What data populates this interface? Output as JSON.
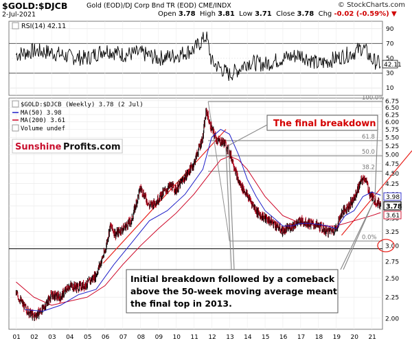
{
  "header": {
    "symbol": "$GOLD:$DJCB",
    "description": "Gold (EOD)/DJ Corp Bnd TR (EOD)  CME/INDX",
    "copyright": "© StockCharts.com",
    "date": "2-Jul-2021",
    "open_label": "Open",
    "open": "3.78",
    "high_label": "High",
    "high": "3.81",
    "low_label": "Low",
    "low": "3.71",
    "close_label": "Close",
    "close": "3.78",
    "chg_label": "Chg",
    "chg": "-0.02 (-0.59%)",
    "chg_arrow": "▼"
  },
  "rsi_panel": {
    "legend": "RSI(14) 42.11",
    "value_tag": "42.11",
    "levels": [
      90,
      70,
      50,
      30,
      10
    ],
    "overbought": 70,
    "oversold": 30
  },
  "price_panel": {
    "legend_title": "$GOLD:$DJCB (Weekly) 3.78 (2 Jul)",
    "legend_ma50": "MA(50) 3.98",
    "legend_ma200": "MA(200) 3.61",
    "legend_volume": "Volume undef",
    "tags": {
      "ma50": "3.98",
      "close": "3.78",
      "ma200": "3.61"
    },
    "colors": {
      "price": "#000000",
      "ma50": "#1f1fc8",
      "ma200": "#cc0022",
      "trendline": "#e8231d",
      "fib": "#8f8f8f",
      "annotation": "#d40000"
    }
  },
  "logo": {
    "part1": "Sunshine",
    "part2": "Profits.com"
  },
  "annotations": {
    "final_breakdown": "The final breakdown",
    "initial_breakdown": [
      "Initial breakdown followed by a comeback",
      "above the 50-week moving average meant",
      "the final top in 2013."
    ]
  },
  "chart_data": {
    "type": "line",
    "title": "$GOLD:$DJCB (Weekly)",
    "xlabel": "",
    "ylabel": "",
    "x_tick_labels": [
      "01",
      "02",
      "03",
      "04",
      "05",
      "06",
      "07",
      "08",
      "09",
      "10",
      "11",
      "12",
      "13",
      "14",
      "15",
      "16",
      "17",
      "18",
      "19",
      "20",
      "21"
    ],
    "y_tick_labels": [
      "6.75",
      "6.50",
      "6.25",
      "6.00",
      "5.75",
      "5.50",
      "5.25",
      "5.00",
      "4.75",
      "4.50",
      "4.25",
      "4.00",
      "3.75",
      "3.50",
      "3.25",
      "3.00",
      "2.75",
      "2.50",
      "2.25",
      "2.00"
    ],
    "ylim": [
      1.88,
      6.85
    ],
    "log_scale": true,
    "fibonacci_levels": [
      {
        "label": "100.0%",
        "value": 6.72
      },
      {
        "label": "61.8",
        "value": 5.4
      },
      {
        "label": "50.0",
        "value": 4.96
      },
      {
        "label": "38.2",
        "value": 4.55
      },
      {
        "label": "0.0%",
        "value": 3.08
      }
    ],
    "horizontal_reference": 2.95,
    "series": [
      {
        "name": "$GOLD:$DJCB",
        "x": [
          2001.0,
          2001.5,
          2002.0,
          2002.5,
          2003.0,
          2003.5,
          2004.0,
          2004.5,
          2005.0,
          2005.5,
          2006.0,
          2006.3,
          2006.6,
          2007.0,
          2007.5,
          2008.0,
          2008.5,
          2008.9,
          2009.3,
          2009.7,
          2010.0,
          2010.5,
          2011.0,
          2011.5,
          2011.7,
          2011.9,
          2012.3,
          2012.7,
          2013.0,
          2013.2,
          2013.5,
          2013.8,
          2014.2,
          2014.6,
          2015.0,
          2015.5,
          2016.0,
          2016.5,
          2017.0,
          2017.5,
          2018.0,
          2018.5,
          2019.0,
          2019.3,
          2019.7,
          2020.0,
          2020.4,
          2020.6,
          2020.9,
          2021.2,
          2021.5
        ],
        "values": [
          2.3,
          2.12,
          2.02,
          2.1,
          2.28,
          2.25,
          2.4,
          2.38,
          2.42,
          2.55,
          2.9,
          3.35,
          3.2,
          3.3,
          3.45,
          4.15,
          3.75,
          3.85,
          4.05,
          4.2,
          4.1,
          4.4,
          4.75,
          5.5,
          6.4,
          5.9,
          5.4,
          5.35,
          5.05,
          4.8,
          4.3,
          4.1,
          3.85,
          3.6,
          3.5,
          3.4,
          3.25,
          3.35,
          3.45,
          3.4,
          3.35,
          3.25,
          3.3,
          3.6,
          3.75,
          3.9,
          4.3,
          4.4,
          4.0,
          3.85,
          3.78
        ]
      },
      {
        "name": "MA(50)",
        "x": [
          2001.5,
          2002.5,
          2003.5,
          2004.5,
          2005.5,
          2006.5,
          2007.5,
          2008.5,
          2009.5,
          2010.5,
          2011.5,
          2012.0,
          2012.5,
          2013.0,
          2013.5,
          2014.0,
          2014.5,
          2015.0,
          2015.5,
          2016.0,
          2016.5,
          2017.0,
          2017.5,
          2018.0,
          2018.5,
          2019.0,
          2019.5,
          2020.0,
          2020.5,
          2021.0,
          2021.5
        ],
        "values": [
          2.1,
          2.08,
          2.15,
          2.28,
          2.35,
          2.7,
          3.05,
          3.45,
          3.65,
          4.0,
          4.6,
          5.5,
          5.75,
          5.6,
          5.0,
          4.35,
          3.95,
          3.65,
          3.5,
          3.35,
          3.35,
          3.4,
          3.4,
          3.38,
          3.35,
          3.3,
          3.55,
          3.65,
          3.95,
          4.05,
          3.98
        ]
      },
      {
        "name": "MA(200)",
        "x": [
          2001.0,
          2002.0,
          2003.0,
          2004.0,
          2005.0,
          2006.0,
          2007.0,
          2008.0,
          2009.0,
          2010.0,
          2011.0,
          2012.0,
          2012.5,
          2013.0,
          2013.5,
          2014.0,
          2015.0,
          2016.0,
          2017.0,
          2018.0,
          2019.0,
          2020.0,
          2021.0,
          2021.5
        ],
        "values": [
          2.45,
          2.25,
          2.15,
          2.2,
          2.25,
          2.4,
          2.7,
          3.0,
          3.3,
          3.6,
          4.0,
          4.55,
          4.85,
          4.95,
          4.85,
          4.6,
          3.95,
          3.55,
          3.4,
          3.35,
          3.35,
          3.45,
          3.55,
          3.61
        ]
      },
      {
        "name": "RSI(14)",
        "x": [
          2001.0,
          2002.0,
          2003.0,
          2004.0,
          2005.0,
          2006.0,
          2007.0,
          2008.0,
          2009.0,
          2010.0,
          2011.0,
          2011.7,
          2012.0,
          2013.0,
          2013.5,
          2014.0,
          2015.0,
          2016.0,
          2017.0,
          2018.0,
          2019.0,
          2020.0,
          2020.5,
          2021.0,
          2021.5
        ],
        "values": [
          55,
          60,
          58,
          52,
          50,
          62,
          55,
          57,
          50,
          54,
          62,
          80,
          45,
          28,
          35,
          45,
          42,
          50,
          55,
          42,
          50,
          58,
          65,
          48,
          42.11
        ]
      }
    ]
  }
}
